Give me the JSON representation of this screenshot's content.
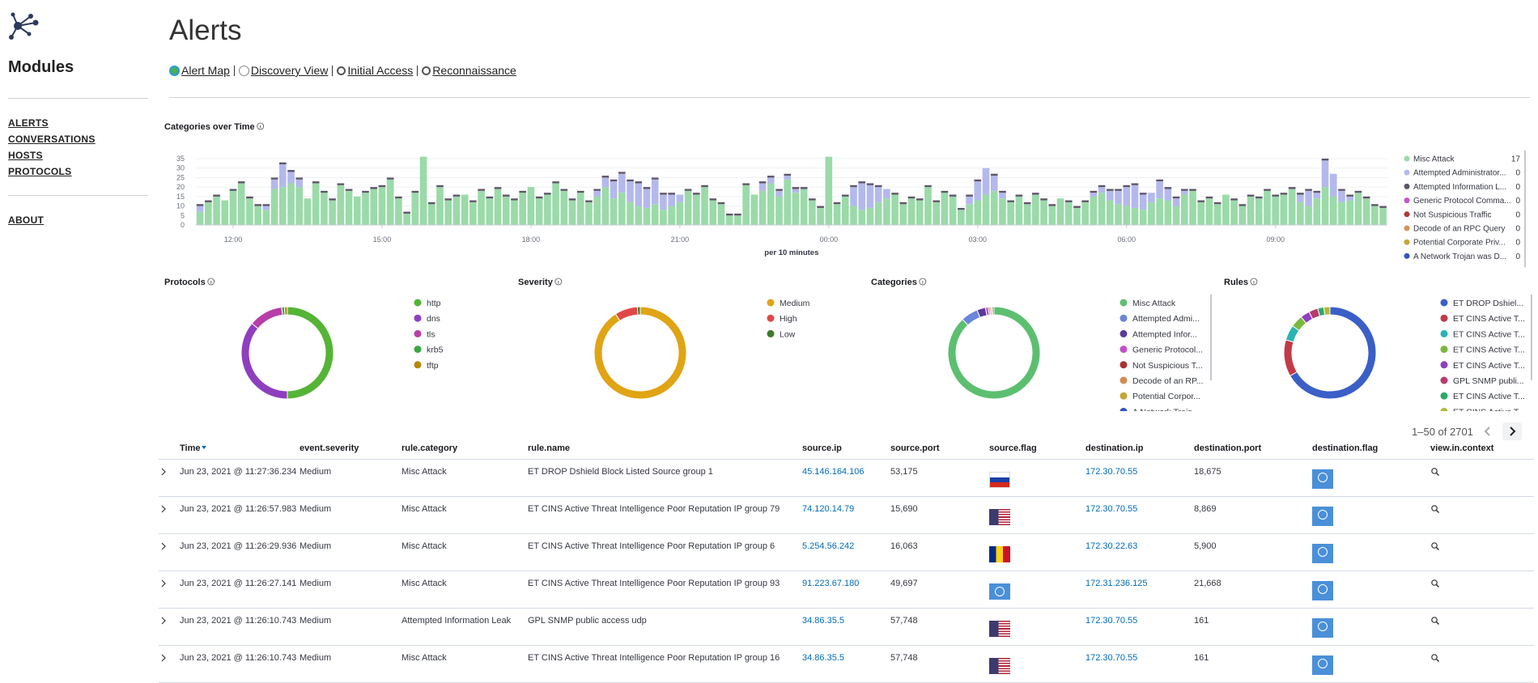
{
  "sidebar": {
    "title": "Modules",
    "links": [
      "ALERTS",
      "CONVERSATIONS",
      "HOSTS",
      "PROTOCOLS"
    ],
    "about": "ABOUT"
  },
  "header": {
    "title": "Alerts",
    "links": [
      "Alert Map",
      "Discovery View",
      "Initial Access",
      "Reconnaissance"
    ]
  },
  "timeline": {
    "type": "bar",
    "stacked": true,
    "title": "Categories over Time",
    "xlabel": "per 10 minutes",
    "ylim": [
      0,
      38
    ],
    "yticks": [
      0,
      5,
      10,
      15,
      20,
      25,
      30,
      35
    ],
    "grid": true,
    "xticks": [
      {
        "value": 4,
        "label": "12:00"
      },
      {
        "value": 22,
        "label": "15:00"
      },
      {
        "value": 40,
        "label": "18:00"
      },
      {
        "value": 58,
        "label": "21:00"
      },
      {
        "value": 76,
        "label": "00:00"
      },
      {
        "value": 94,
        "label": "03:00"
      },
      {
        "value": 112,
        "label": "06:00"
      },
      {
        "value": 130,
        "label": "09:00"
      }
    ],
    "series": [
      {
        "name": "Misc Attack",
        "color": "#9bdaa9",
        "legend_value": 17,
        "values": [
          7,
          12,
          15,
          13,
          18,
          22,
          14,
          10,
          8,
          19,
          20,
          22,
          20,
          14,
          22,
          17,
          13,
          21,
          18,
          15,
          17,
          19,
          20,
          24,
          14,
          6,
          17,
          36,
          11,
          20,
          13,
          15,
          16,
          12,
          18,
          14,
          19,
          15,
          13,
          17,
          20,
          14,
          16,
          22,
          18,
          13,
          17,
          12,
          15,
          20,
          14,
          17,
          12,
          10,
          9,
          11,
          8,
          10,
          12,
          18,
          16,
          20,
          13,
          11,
          5,
          5,
          21,
          16,
          18,
          22,
          15,
          24,
          17,
          19,
          13,
          9,
          36,
          11,
          15,
          10,
          8,
          9,
          12,
          14,
          16,
          11,
          14,
          13,
          20,
          12,
          17,
          15,
          8,
          11,
          13,
          16,
          18,
          14,
          12,
          15,
          11,
          16,
          13,
          10,
          14,
          12,
          9,
          12,
          15,
          17,
          13,
          11,
          10,
          9,
          8,
          12,
          14,
          13,
          10,
          16,
          18,
          12,
          14,
          11,
          16,
          13,
          10,
          15,
          14,
          18,
          15,
          16,
          19,
          12,
          10,
          14,
          20,
          15,
          12,
          13,
          17,
          14,
          10,
          9
        ]
      },
      {
        "name": "Attempted Administrator...",
        "color": "#b4b9ec",
        "legend_value": 0,
        "values": [
          3,
          0,
          0,
          0,
          0,
          0,
          0,
          0,
          2,
          5,
          12,
          6,
          4,
          0,
          0,
          0,
          0,
          0,
          0,
          0,
          0,
          0,
          0,
          0,
          0,
          0,
          0,
          0,
          0,
          0,
          0,
          0,
          0,
          0,
          0,
          0,
          0,
          0,
          0,
          0,
          0,
          0,
          0,
          0,
          0,
          0,
          0,
          0,
          3,
          5,
          9,
          10,
          11,
          12,
          10,
          13,
          8,
          6,
          4,
          0,
          0,
          0,
          0,
          0,
          0,
          0,
          0,
          0,
          4,
          3,
          3,
          2,
          2,
          0,
          0,
          0,
          0,
          0,
          0,
          10,
          14,
          12,
          8,
          5,
          0,
          0,
          0,
          0,
          0,
          0,
          0,
          0,
          0,
          4,
          10,
          14,
          8,
          3,
          0,
          0,
          0,
          0,
          0,
          0,
          0,
          0,
          0,
          0,
          2,
          3,
          5,
          7,
          10,
          12,
          8,
          5,
          9,
          6,
          4,
          2,
          0,
          0,
          0,
          0,
          0,
          0,
          0,
          0,
          0,
          0,
          0,
          0,
          0,
          4,
          8,
          3,
          14,
          12,
          6,
          2,
          0,
          0,
          0,
          0
        ]
      },
      {
        "name": "Attempted Information L...",
        "color": "#5e5468",
        "legend_value": 0,
        "values": [
          1,
          1,
          1,
          0,
          1,
          1,
          1,
          1,
          1,
          1,
          1,
          1,
          1,
          0,
          1,
          1,
          1,
          1,
          1,
          0,
          1,
          1,
          1,
          1,
          1,
          1,
          1,
          0,
          1,
          1,
          1,
          1,
          0,
          1,
          1,
          1,
          1,
          1,
          1,
          1,
          0,
          1,
          1,
          1,
          1,
          1,
          1,
          1,
          1,
          1,
          1,
          1,
          1,
          1,
          1,
          1,
          1,
          1,
          0,
          1,
          1,
          1,
          1,
          1,
          1,
          1,
          1,
          0,
          1,
          1,
          1,
          1,
          1,
          1,
          1,
          1,
          0,
          1,
          1,
          1,
          1,
          1,
          1,
          0,
          1,
          1,
          1,
          1,
          1,
          1,
          1,
          1,
          1,
          1,
          1,
          0,
          1,
          1,
          1,
          1,
          1,
          1,
          1,
          1,
          0,
          1,
          1,
          1,
          1,
          1,
          1,
          1,
          1,
          1,
          1,
          0,
          1,
          1,
          1,
          1,
          1,
          1,
          1,
          1,
          0,
          1,
          1,
          1,
          1,
          1,
          1,
          1,
          1,
          1,
          1,
          1,
          1,
          0,
          1,
          1,
          1,
          1,
          1,
          1
        ]
      },
      {
        "name": "Generic Protocol Comma...",
        "color": "#c255c8",
        "legend_value": 0
      },
      {
        "name": "Not Suspicious Traffic",
        "color": "#a83a3a",
        "legend_value": 0
      },
      {
        "name": "Decode of an RPC Query",
        "color": "#d69258",
        "legend_value": 0
      },
      {
        "name": "Potential Corporate Priv...",
        "color": "#c4a534",
        "legend_value": 0
      },
      {
        "name": "A Network Trojan was D...",
        "color": "#3552c4",
        "legend_value": 0
      }
    ]
  },
  "donuts": [
    {
      "type": "pie",
      "title": "Protocols",
      "categories": [
        "http",
        "dns",
        "tls",
        "krb5",
        "tftp"
      ],
      "values": [
        50,
        36,
        12,
        1,
        1
      ],
      "colors": [
        "#54b435",
        "#8e3fbf",
        "#b73ea9",
        "#3aa843",
        "#b8860b"
      ]
    },
    {
      "type": "pie",
      "title": "Severity",
      "categories": [
        "Medium",
        "High",
        "Low"
      ],
      "values": [
        91,
        8,
        1
      ],
      "colors": [
        "#e0a414",
        "#e04848",
        "#3f7a2a"
      ]
    },
    {
      "type": "pie",
      "title": "Categories",
      "categories": [
        "Misc Attack",
        "Attempted Admi...",
        "Attempted Infor...",
        "Generic Protocol...",
        "Not Suspicious T...",
        "Decode of an RP...",
        "Potential Corpor...",
        "A Network Troja..."
      ],
      "values": [
        88,
        6,
        3,
        1,
        0.5,
        0.5,
        0.5,
        0.5
      ],
      "colors": [
        "#5cbf70",
        "#6a85d9",
        "#5a3a99",
        "#c051c4",
        "#a83232",
        "#d18c55",
        "#c4a534",
        "#3552c4"
      ]
    },
    {
      "type": "pie",
      "title": "Rules",
      "categories": [
        "ET DROP Dshiel...",
        "ET CINS Active T...",
        "ET CINS Active T...",
        "ET CINS Active T...",
        "ET CINS Active T...",
        "GPL SNMP publi...",
        "ET CINS Active T...",
        "ET CINS Active T..."
      ],
      "values": [
        62,
        12,
        5,
        4,
        3,
        3,
        2,
        2
      ],
      "colors": [
        "#3a5fc7",
        "#c23a48",
        "#2ab3b3",
        "#7ab83d",
        "#8e3fbf",
        "#b83a6e",
        "#2ea86a",
        "#b5b83a"
      ]
    }
  ],
  "table": {
    "pager": "1–50 of 2701",
    "columns": [
      "Time",
      "event.severity",
      "rule.category",
      "rule.name",
      "source.ip",
      "source.port",
      "source.flag",
      "destination.ip",
      "destination.port",
      "destination.flag",
      "view.in.context"
    ],
    "rows": [
      [
        "Jun 23, 2021 @ 11:27:36.234",
        "Medium",
        "Misc Attack",
        "ET DROP Dshield Block Listed Source group 1",
        "45.146.164.106",
        "53,175",
        "172.30.70.55",
        "18,675"
      ],
      [
        "Jun 23, 2021 @ 11:26:57.983",
        "Medium",
        "Misc Attack",
        "ET CINS Active Threat Intelligence Poor Reputation IP group 79",
        "74.120.14.79",
        "15,690",
        "172.30.70.55",
        "8,869"
      ],
      [
        "Jun 23, 2021 @ 11:26:29.936",
        "Medium",
        "Misc Attack",
        "ET CINS Active Threat Intelligence Poor Reputation IP group 6",
        "5.254.56.242",
        "16,063",
        "172.30.22.63",
        "5,900"
      ],
      [
        "Jun 23, 2021 @ 11:26:27.141",
        "Medium",
        "Misc Attack",
        "ET CINS Active Threat Intelligence Poor Reputation IP group 93",
        "91.223.67.180",
        "49,697",
        "172.31.236.125",
        "21,668"
      ],
      [
        "Jun 23, 2021 @ 11:26:10.743",
        "Medium",
        "Attempted Information Leak",
        "GPL SNMP public access udp",
        "34.86.35.5",
        "57,748",
        "172.30.70.55",
        "161"
      ],
      [
        "Jun 23, 2021 @ 11:26:10.743",
        "Medium",
        "Misc Attack",
        "ET CINS Active Threat Intelligence Poor Reputation IP group 16",
        "34.86.35.5",
        "57,748",
        "172.30.70.55",
        "161"
      ]
    ]
  }
}
